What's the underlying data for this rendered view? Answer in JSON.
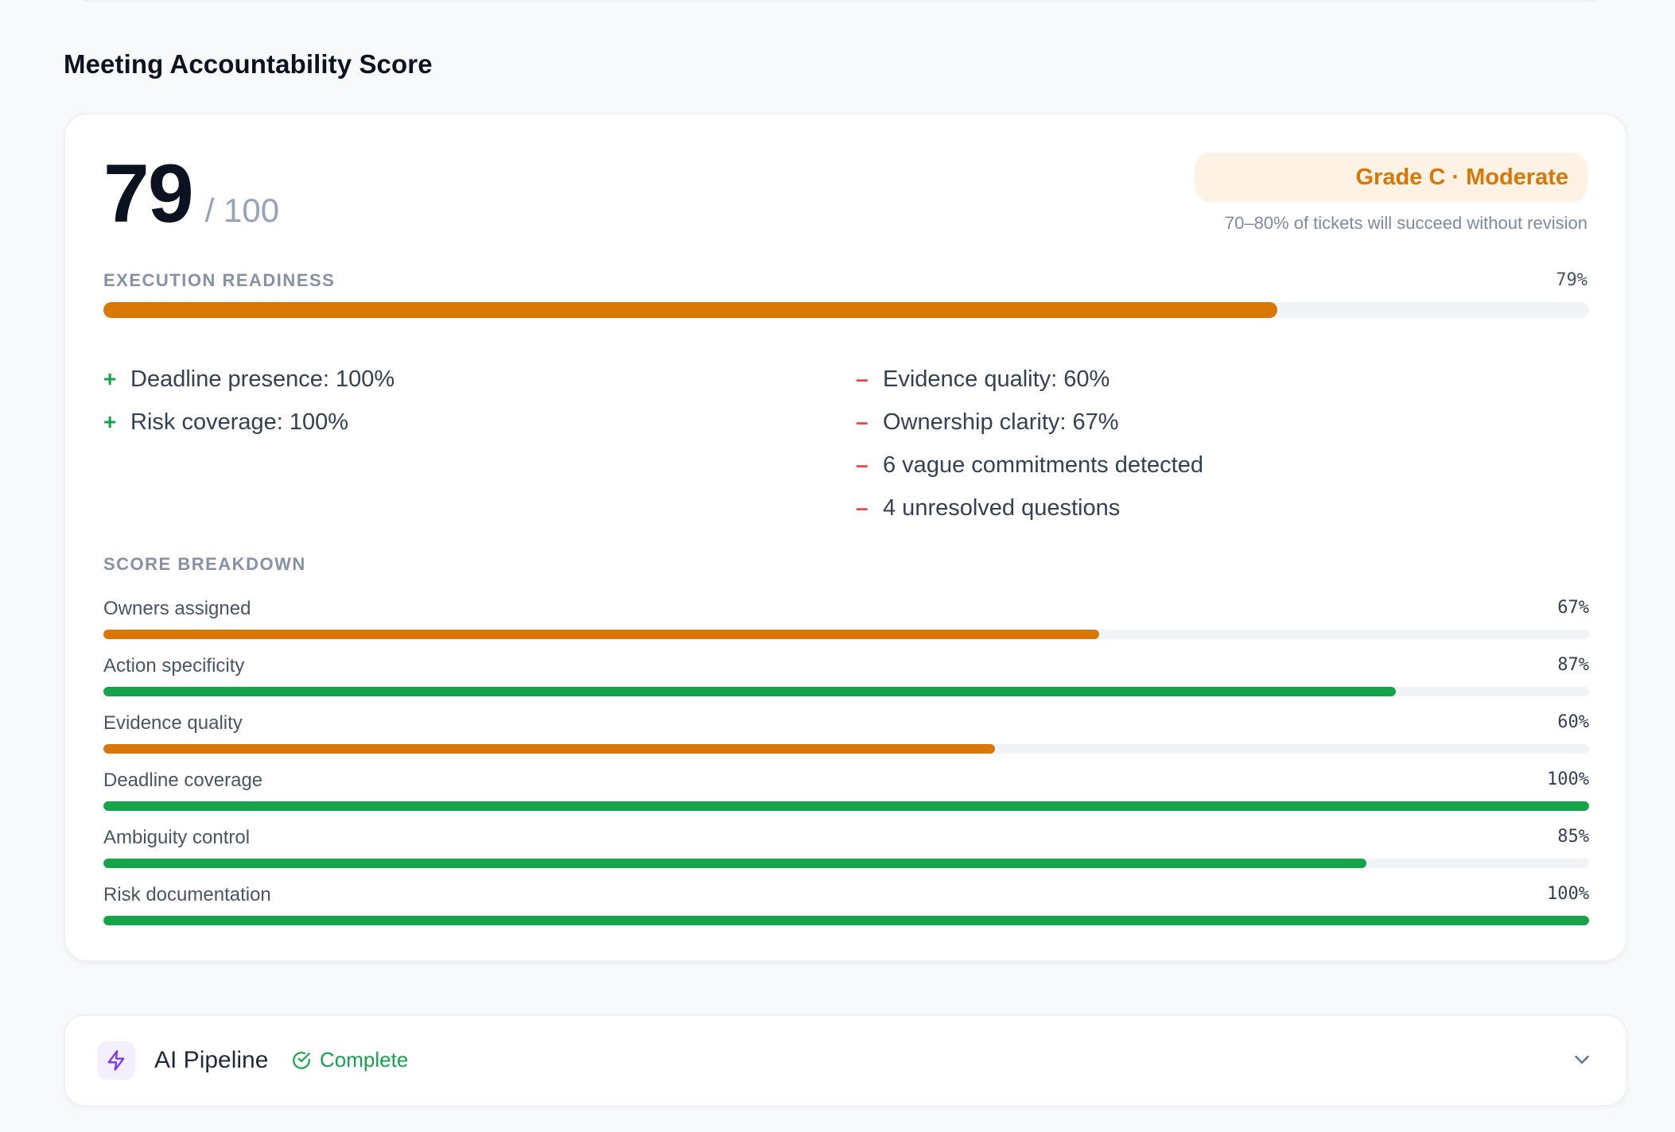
{
  "section_title": "Meeting Accountability Score",
  "score": {
    "value": "79",
    "max": "/ 100"
  },
  "grade": {
    "badge": "Grade C · Moderate",
    "note": "70–80% of tickets will succeed without revision"
  },
  "readiness": {
    "label": "EXECUTION READINESS",
    "percent_label": "79%",
    "value": 79,
    "color": "#d97706"
  },
  "factors": {
    "positive": [
      {
        "mark": "+",
        "text": "Deadline presence: 100%"
      },
      {
        "mark": "+",
        "text": "Risk coverage: 100%"
      }
    ],
    "negative": [
      {
        "mark": "–",
        "text": "Evidence quality: 60%"
      },
      {
        "mark": "–",
        "text": "Ownership clarity: 67%"
      },
      {
        "mark": "–",
        "text": "6 vague commitments detected"
      },
      {
        "mark": "–",
        "text": "4 unresolved questions"
      }
    ]
  },
  "breakdown": {
    "label": "SCORE BREAKDOWN",
    "items": [
      {
        "name": "Owners assigned",
        "percent_label": "67%",
        "value": 67,
        "color": "#d97706"
      },
      {
        "name": "Action specificity",
        "percent_label": "87%",
        "value": 87,
        "color": "#16a34a"
      },
      {
        "name": "Evidence quality",
        "percent_label": "60%",
        "value": 60,
        "color": "#d97706"
      },
      {
        "name": "Deadline coverage",
        "percent_label": "100%",
        "value": 100,
        "color": "#16a34a"
      },
      {
        "name": "Ambiguity control",
        "percent_label": "85%",
        "value": 85,
        "color": "#16a34a"
      },
      {
        "name": "Risk documentation",
        "percent_label": "100%",
        "value": 100,
        "color": "#16a34a"
      }
    ]
  },
  "pipeline": {
    "title": "AI Pipeline",
    "status": "Complete",
    "icon": "lightning-icon",
    "status_icon": "check-circle-icon",
    "toggle_icon": "chevron-down-icon"
  }
}
